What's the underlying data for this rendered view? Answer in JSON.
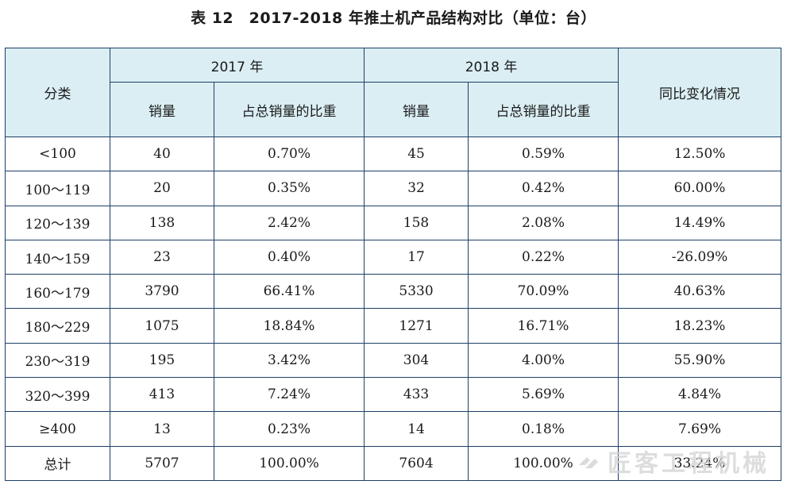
{
  "title": "表 12　2017-2018 年推土机产品结构对比（单位：台）",
  "header": {
    "category": "分类",
    "year1": "2017 年",
    "year2": "2018 年",
    "yoy": "同比变化情况",
    "sales": "销量",
    "share": "占总销量的比重"
  },
  "rows": [
    {
      "cat": "<100",
      "s17": "40",
      "p17": "0.70%",
      "s18": "45",
      "p18": "0.59%",
      "yoy": "12.50%"
    },
    {
      "cat": "100～119",
      "s17": "20",
      "p17": "0.35%",
      "s18": "32",
      "p18": "0.42%",
      "yoy": "60.00%"
    },
    {
      "cat": "120～139",
      "s17": "138",
      "p17": "2.42%",
      "s18": "158",
      "p18": "2.08%",
      "yoy": "14.49%"
    },
    {
      "cat": "140～159",
      "s17": "23",
      "p17": "0.40%",
      "s18": "17",
      "p18": "0.22%",
      "yoy": "-26.09%"
    },
    {
      "cat": "160～179",
      "s17": "3790",
      "p17": "66.41%",
      "s18": "5330",
      "p18": "70.09%",
      "yoy": "40.63%"
    },
    {
      "cat": "180～229",
      "s17": "1075",
      "p17": "18.84%",
      "s18": "1271",
      "p18": "16.71%",
      "yoy": "18.23%"
    },
    {
      "cat": "230～319",
      "s17": "195",
      "p17": "3.42%",
      "s18": "304",
      "p18": "4.00%",
      "yoy": "55.90%"
    },
    {
      "cat": "320～399",
      "s17": "413",
      "p17": "7.24%",
      "s18": "433",
      "p18": "5.69%",
      "yoy": "4.84%"
    },
    {
      "cat": "≥400",
      "s17": "13",
      "p17": "0.23%",
      "s18": "14",
      "p18": "0.18%",
      "yoy": "7.69%"
    },
    {
      "cat": "总计",
      "s17": "5707",
      "p17": "100.00%",
      "s18": "7604",
      "p18": "100.00%",
      "yoy": "33.24%"
    }
  ],
  "watermark": {
    "text": "匠客工程机械",
    "icon": "chevron-logo-icon",
    "color": "#d2d2d2"
  },
  "colors": {
    "header_bg": "#daeef3",
    "border": "#1e3f66"
  }
}
